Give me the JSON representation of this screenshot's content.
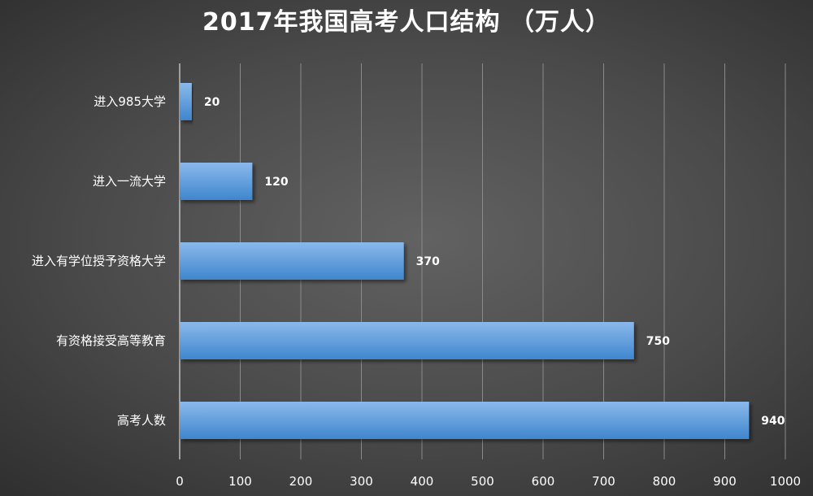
{
  "chart_data": {
    "type": "bar",
    "orientation": "horizontal",
    "title": "2017年我国高考人口结构 （万人）",
    "categories": [
      "进入985大学",
      "进入一流大学",
      "进入有学位授予资格大学",
      "有资格接受高等教育",
      "高考人数"
    ],
    "values": [
      20,
      120,
      370,
      750,
      940
    ],
    "xlim": [
      0,
      1000
    ],
    "xticks": [
      0,
      100,
      200,
      300,
      400,
      500,
      600,
      700,
      800,
      900,
      1000
    ],
    "grid": true,
    "legend": "none",
    "colors": {
      "bar_top": "#8ab9ea",
      "bar_bottom": "#3f86cf",
      "gridline": "#8a8a8a",
      "text": "#ffffff"
    }
  }
}
